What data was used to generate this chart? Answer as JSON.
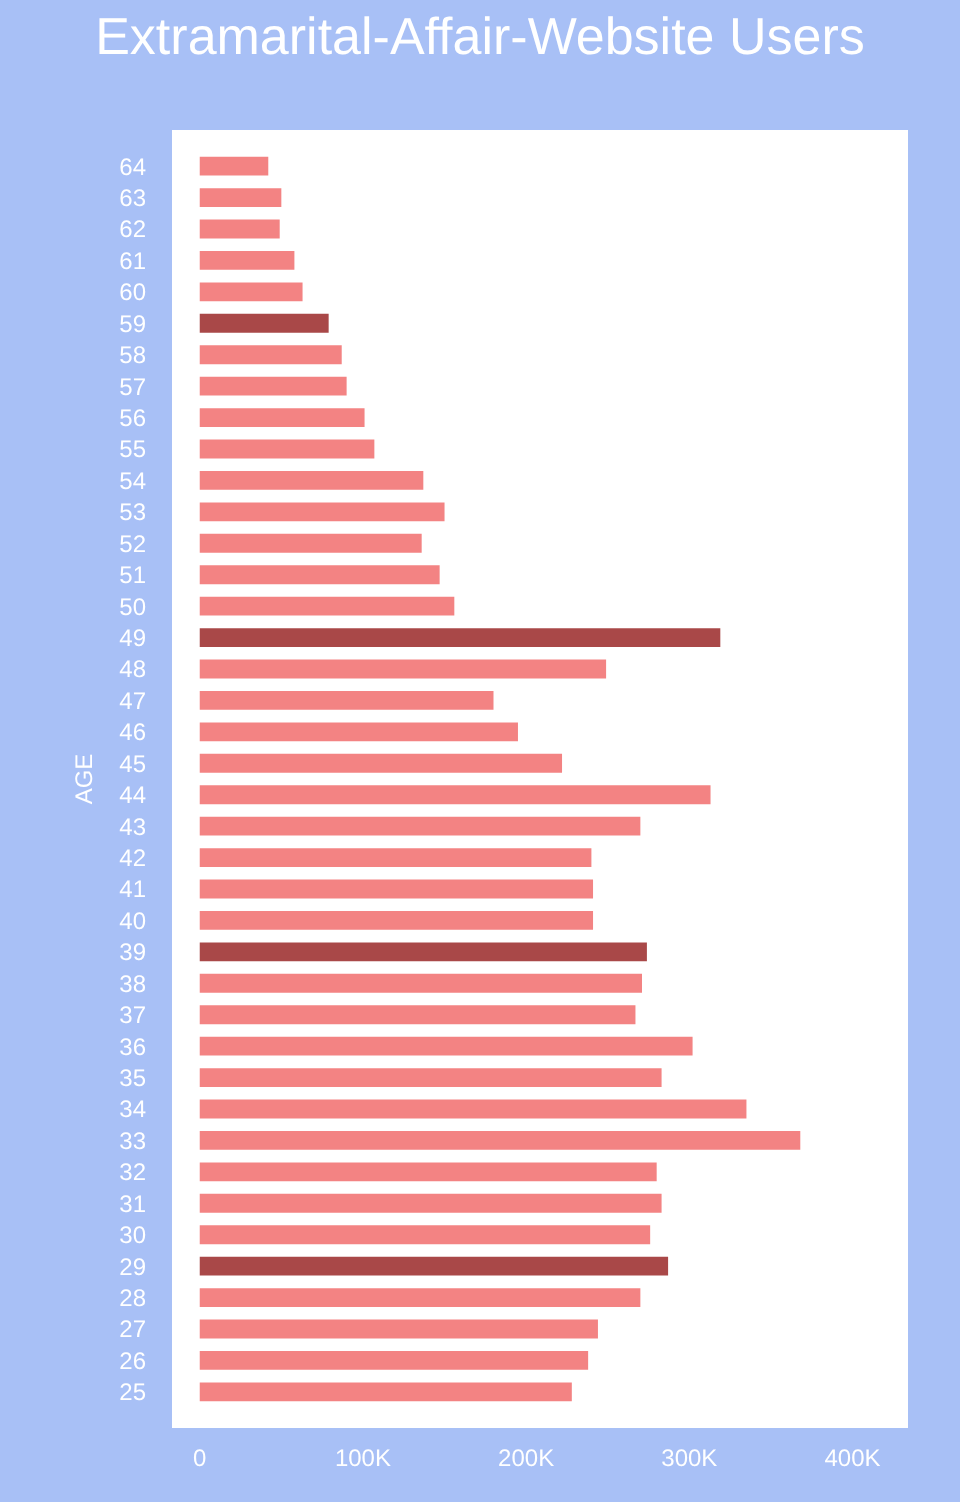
{
  "chart_data": {
    "type": "bar",
    "orientation": "horizontal",
    "title": "Extramarital-Affair-Website Users",
    "ylabel": "AGE",
    "categories": [
      "64",
      "63",
      "62",
      "61",
      "60",
      "59",
      "58",
      "57",
      "56",
      "55",
      "54",
      "53",
      "52",
      "51",
      "50",
      "49",
      "48",
      "47",
      "46",
      "45",
      "44",
      "43",
      "42",
      "41",
      "40",
      "39",
      "38",
      "37",
      "36",
      "35",
      "34",
      "33",
      "32",
      "31",
      "30",
      "29",
      "28",
      "27",
      "26",
      "25"
    ],
    "values": [
      42000,
      50000,
      49000,
      58000,
      63000,
      79000,
      87000,
      90000,
      101000,
      107000,
      137000,
      150000,
      136000,
      147000,
      156000,
      319000,
      249000,
      180000,
      195000,
      222000,
      313000,
      270000,
      240000,
      241000,
      241000,
      274000,
      271000,
      267000,
      302000,
      283000,
      335000,
      368000,
      280000,
      283000,
      276000,
      287000,
      270000,
      244000,
      238000,
      228000
    ],
    "colors": [
      "#f38383",
      "#f38383",
      "#f38383",
      "#f38383",
      "#f38383",
      "#a94848",
      "#f38383",
      "#f38383",
      "#f38383",
      "#f38383",
      "#f38383",
      "#f38383",
      "#f38383",
      "#f38383",
      "#f38383",
      "#a94848",
      "#f38383",
      "#f38383",
      "#f38383",
      "#f38383",
      "#f38383",
      "#f38383",
      "#f38383",
      "#f38383",
      "#f38383",
      "#a94848",
      "#f38383",
      "#f38383",
      "#f38383",
      "#f38383",
      "#f38383",
      "#f38383",
      "#f38383",
      "#f38383",
      "#f38383",
      "#a94848",
      "#f38383",
      "#f38383",
      "#f38383",
      "#f38383"
    ],
    "xlim": [
      -17000,
      434000
    ],
    "xticks": [
      0,
      {
        "value": 100000,
        "label": "100K"
      },
      {
        "value": 200000,
        "label": "200K"
      },
      {
        "value": 300000,
        "label": "300K"
      },
      {
        "value": 400000,
        "label": "400K"
      }
    ],
    "grid": false
  }
}
